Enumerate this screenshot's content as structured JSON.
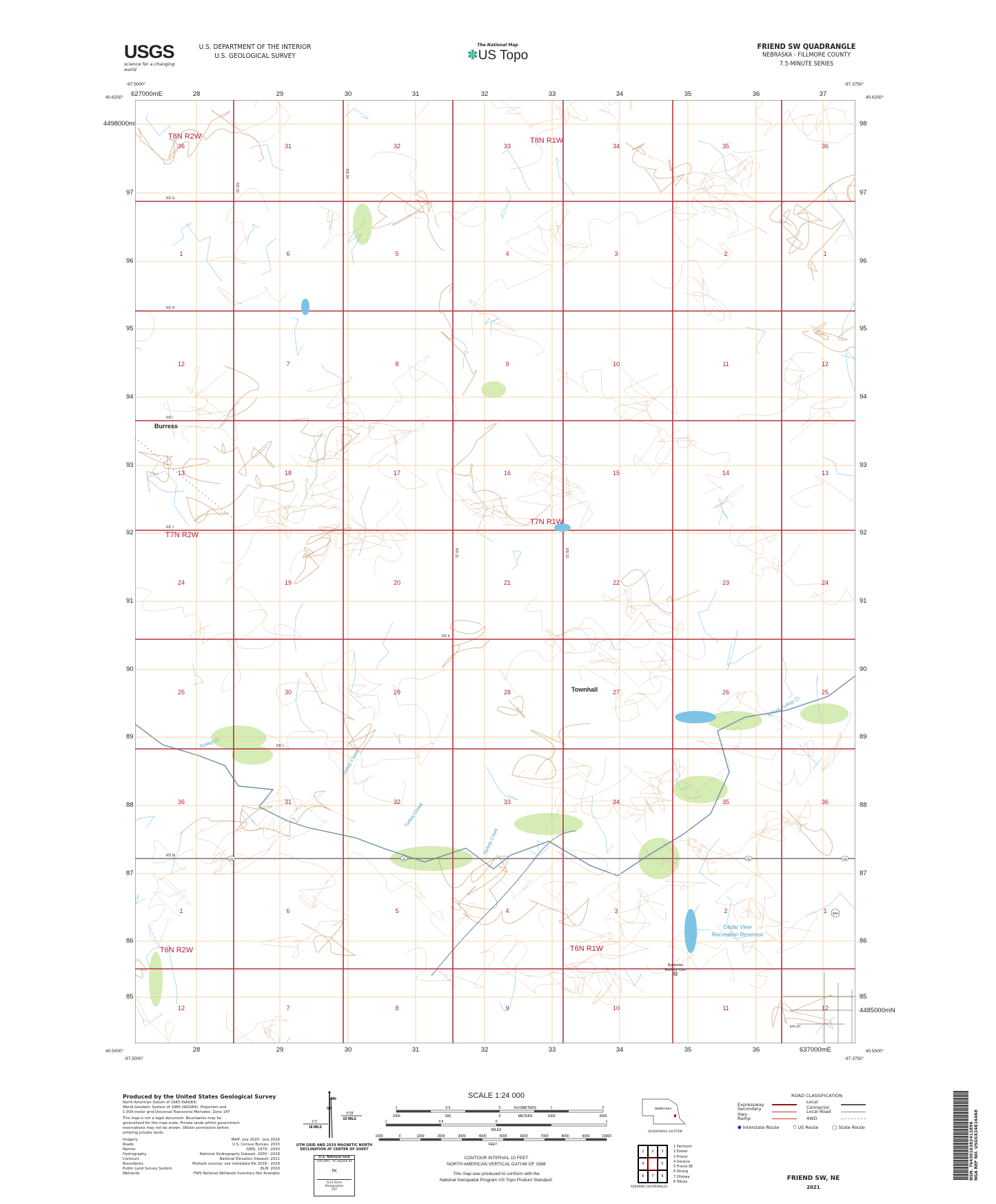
{
  "header": {
    "usgs_logo": "USGS",
    "usgs_tagline": "science for a changing world",
    "department": "U.S. DEPARTMENT OF THE INTERIOR",
    "survey": "U.S. GEOLOGICAL SURVEY",
    "national_map": "The National Map",
    "us_topo": "US Topo",
    "quad_title": "FRIEND SW QUADRANGLE",
    "state_county": "NEBRASKA - FILLMORE COUNTY",
    "series": "7.5-MINUTE SERIES"
  },
  "corners": {
    "nw_lon": "-97.5000°",
    "nw_lat": "40.6250°",
    "ne_lon": "-97.3750°",
    "ne_lat": "40.6250°",
    "sw_lon": "-97.5000°",
    "sw_lat": "40.5000°",
    "se_lon": "-97.3750°",
    "se_lat": "40.5000°"
  },
  "grid": {
    "top_first": "627000mE",
    "easting_labels": [
      "28",
      "29",
      "30",
      "31",
      "32",
      "33",
      "34",
      "35",
      "36",
      "37"
    ],
    "bottom_last": "637000mE",
    "left_first": "4498000mN",
    "northing_labels": [
      "97",
      "96",
      "95",
      "94",
      "93",
      "92",
      "91",
      "90",
      "89",
      "88",
      "87",
      "86",
      "85"
    ],
    "right_last": "4485000mN"
  },
  "map": {
    "colors": {
      "section_road": "#b5343f",
      "utm_grid": "#f0c98a",
      "contour": "#c49a6c",
      "water": "#7ec3e3",
      "woodland": "#d5ecb5",
      "label": "#b01e3c"
    },
    "townships": [
      {
        "label": "T8N R2W"
      },
      {
        "label": "T8N R1W"
      },
      {
        "label": "T7N R2W"
      },
      {
        "label": "T7N R1W"
      },
      {
        "label": "T6N R2W"
      },
      {
        "label": "T6N R1W"
      }
    ],
    "section_rows": [
      [
        "36",
        "31",
        "32",
        "33",
        "34",
        "35",
        "36"
      ],
      [
        "1",
        "6",
        "5",
        "4",
        "3",
        "2",
        "1"
      ],
      [
        "12",
        "7",
        "8",
        "9",
        "10",
        "11",
        "12"
      ],
      [
        "13",
        "18",
        "17",
        "16",
        "15",
        "14",
        "13"
      ],
      [
        "24",
        "19",
        "20",
        "21",
        "22",
        "23",
        "24"
      ],
      [
        "25",
        "30",
        "29",
        "28",
        "27",
        "26",
        "25"
      ],
      [
        "36",
        "31",
        "32",
        "33",
        "34",
        "35",
        "36"
      ],
      [
        "1",
        "6",
        "5",
        "4",
        "3",
        "2",
        "1"
      ],
      [
        "12",
        "7",
        "8",
        "9",
        "10",
        "11",
        "12"
      ]
    ],
    "places": [
      {
        "name": "Burress"
      },
      {
        "name": "Townhall"
      },
      {
        "name": "Cedar View"
      },
      {
        "name": "Recreation Reservoir"
      },
      {
        "name": "Bohemian"
      },
      {
        "name": "Brethren Cem"
      }
    ],
    "streams": [
      {
        "name": "Turkey Cr"
      },
      {
        "name": "Turkey Creek"
      },
      {
        "name": "Turkey Creek"
      },
      {
        "name": "S Fork Turkey Cr"
      },
      {
        "name": "Turkey Creek"
      }
    ],
    "roads_horizontal": [
      "RD G",
      "RD H",
      "RD I",
      "RD J",
      "RD K",
      "RD L",
      "RD M"
    ],
    "roads_vertical": [
      "RD 19",
      "RD 20",
      "RD 21",
      "RD 22"
    ],
    "highway": "41",
    "town_route": "30H",
    "street": "6TH ST"
  },
  "footer": {
    "produced_by": "Produced by the United States Geological Survey",
    "datum_lines": [
      "North American Datum of 1983 (NAD83)",
      "World Geodetic System of 1984 (WGS84).  Projection and",
      "1 000-meter grid:Universal Transverse Mercator, Zone 14T"
    ],
    "legal_lines": [
      "This map is not a legal document. Boundaries may be",
      "generalized for this map scale. Private lands within government",
      "reservations may not be shown. Obtain permission before",
      "entering private lands."
    ],
    "sources": [
      {
        "k": "Imagery",
        "v": "NAIP, July 2020 - July 2020"
      },
      {
        "k": "Roads",
        "v": "U.S. Census Bureau, 2015"
      },
      {
        "k": "Names",
        "v": "GNIS, 1979 - 2020"
      },
      {
        "k": "Hydrography",
        "v": "National Hydrography Dataset, 2003 - 2018"
      },
      {
        "k": "Contours",
        "v": "National Elevation Dataset, 2011"
      },
      {
        "k": "Boundaries",
        "v": "Multiple sources; see metadata file 2018 - 2019"
      },
      {
        "k": "Public Land Survey System",
        "v": "BLM, 2020"
      },
      {
        "k": "Wetlands",
        "v": "FWS National Wetlands Inventory Not Available"
      }
    ],
    "declination": {
      "mn": "MN",
      "gn": "GN",
      "mag_angle": "3°33'",
      "mag_mils": "63 MILS",
      "grid_angle": "1°1'",
      "grid_mils": "18 MILS",
      "caption1": "UTM GRID AND 2019 MAGNETIC NORTH",
      "caption2": "DECLINATION AT CENTER OF SHEET"
    },
    "usng": {
      "title": "U.S. National Grid",
      "square_label": "100,000 - m Square ID",
      "square": "PK",
      "zone_label": "Grid Zone Designation",
      "zone": "14T"
    },
    "scale": {
      "title": "SCALE 1:24 000",
      "km_labels": [
        "1",
        "0.5",
        "0",
        "1",
        "2"
      ],
      "km_unit": "KILOMETERS",
      "m_labels": [
        "1000",
        "500",
        "0",
        "1000",
        "2000"
      ],
      "m_unit": "METERS",
      "mi_labels": [
        "1",
        "0.5",
        "0",
        "1"
      ],
      "mi_unit": "MILES",
      "ft_labels": [
        "1000",
        "0",
        "1000",
        "2000",
        "3000",
        "4000",
        "5000",
        "6000",
        "7000",
        "8000",
        "9000",
        "10000"
      ],
      "ft_unit": "FEET"
    },
    "contour_interval": "CONTOUR INTERVAL 10 FEET",
    "vertical_datum": "NORTH AMERICAN VERTICAL DATUM OF 1988",
    "conform1": "This map was produced to conform with the",
    "conform2": "National Geospatial Program US Topo Product Standard.",
    "location": {
      "state": "NEBRASKA",
      "caption": "QUADRANGLE LOCATION"
    },
    "adjoining": {
      "cells": [
        "1",
        "2",
        "3",
        "4",
        "",
        "5",
        "6",
        "7",
        "8"
      ],
      "names": [
        "1 Fairmont",
        "2 Exeter",
        "3 Friend",
        "4 Geneva",
        "5 Friend SE",
        "6 Strang",
        "7 Ohiowa",
        "8 Tobias"
      ],
      "caption": "ADJOINING QUADRANGLES"
    },
    "roads_legend": {
      "title": "ROAD CLASSIFICATION",
      "items": [
        "Expressway",
        "Secondary Hwy",
        "Ramp",
        "Local Connector",
        "Local Road",
        "4WD"
      ],
      "routes": [
        "Interstate Route",
        "US Route",
        "State Route"
      ]
    },
    "sheet_name": "FRIEND SW,  NE",
    "year": "2021",
    "barcode_text": "NSN. 7643016382412896",
    "barcode_ref": "NGA REF NO. USGSX24K16468"
  }
}
